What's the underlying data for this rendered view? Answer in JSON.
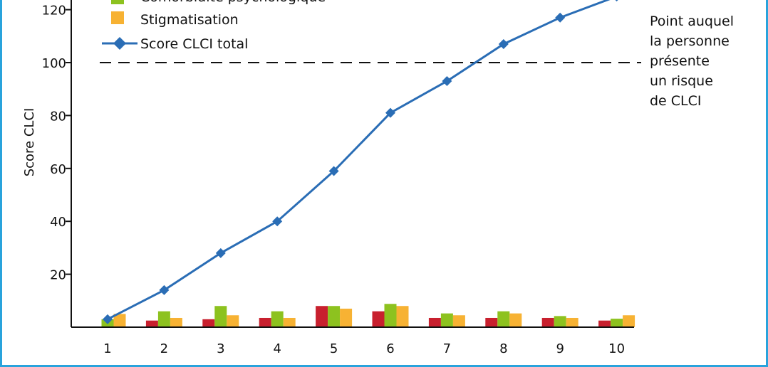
{
  "chart_data": {
    "type": "bar+line",
    "y_axis_label": "Score CLCI",
    "ylim": [
      0,
      130
    ],
    "yticks": [
      20,
      40,
      60,
      80,
      100,
      120
    ],
    "categories": [
      "1",
      "2",
      "3",
      "4",
      "5",
      "6",
      "7",
      "8",
      "9",
      "10"
    ],
    "series": [
      {
        "name": "",
        "kind": "bar",
        "color": "#c8202e",
        "values": [
          0,
          2.5,
          3,
          3.5,
          8,
          6,
          3.5,
          3.5,
          3.5,
          2.5
        ]
      },
      {
        "name": "Comorbidité psychologique",
        "kind": "bar",
        "color": "#8dc21f",
        "values": [
          3,
          6,
          8,
          6,
          8,
          8.8,
          5.2,
          6,
          4.2,
          3.2
        ]
      },
      {
        "name": "Stigmatisation",
        "kind": "bar",
        "color": "#f7b233",
        "values": [
          5,
          3.5,
          4.5,
          3.5,
          7,
          8,
          4.5,
          5.2,
          3.5,
          4.5
        ]
      },
      {
        "name": "Score CLCI total",
        "kind": "line",
        "color": "#2a6db5",
        "values": [
          3,
          14,
          28,
          40,
          59,
          81,
          93,
          107,
          117,
          125
        ]
      }
    ],
    "threshold": {
      "value": 100,
      "style": "dashed"
    },
    "annotation": [
      "Point auquel",
      "la personne",
      "présente",
      "un risque",
      "de CLCI"
    ]
  }
}
